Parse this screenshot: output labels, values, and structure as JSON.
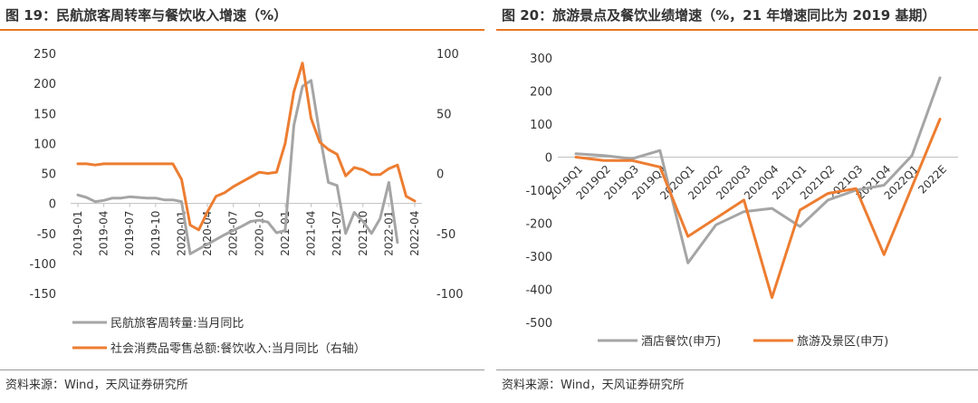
{
  "chart_data": [
    {
      "type": "line",
      "title": "图 19：民航旅客周转率与餐饮收入增速（%）",
      "source": "资料来源：Wind，天风证券研究所",
      "x": [
        "2019-01",
        "2019-02",
        "2019-03",
        "2019-04",
        "2019-05",
        "2019-06",
        "2019-07",
        "2019-08",
        "2019-09",
        "2019-10",
        "2019-11",
        "2019-12",
        "2020-01",
        "2020-02",
        "2020-03",
        "2020-04",
        "2020-05",
        "2020-06",
        "2020-07",
        "2020-08",
        "2020-09",
        "2020-10",
        "2020-11",
        "2020-12",
        "2021-01",
        "2021-02",
        "2021-03",
        "2021-04",
        "2021-05",
        "2021-06",
        "2021-07",
        "2021-08",
        "2021-09",
        "2021-10",
        "2021-11",
        "2021-12",
        "2022-01",
        "2022-02",
        "2022-03",
        "2022-04"
      ],
      "tick_labels": [
        "2019-01",
        "2019-04",
        "2019-07",
        "2019-10",
        "2020-01",
        "2020-04",
        "2020-07",
        "2020-10",
        "2021-01",
        "2021-04",
        "2021-07",
        "2021-10",
        "2022-01",
        "2022-04"
      ],
      "y_left": {
        "min": -150,
        "max": 250,
        "ticks": [
          -150,
          -100,
          -50,
          0,
          50,
          100,
          150,
          200,
          250
        ]
      },
      "y_right": {
        "min": -100,
        "max": 100,
        "ticks": [
          -100,
          -50,
          0,
          50,
          100
        ]
      },
      "grid": false,
      "legend_position": "bottom",
      "series": [
        {
          "name": "民航旅客周转量:当月同比",
          "color": "#a5a5a5",
          "axis": "left",
          "values": [
            14,
            10,
            3,
            5,
            9,
            9,
            11,
            10,
            9,
            9,
            6,
            6,
            3,
            -84,
            -76,
            -68,
            -60,
            -52,
            -45,
            -38,
            -30,
            -28,
            -31,
            -49,
            -45,
            130,
            195,
            205,
            115,
            35,
            30,
            -50,
            -15,
            -30,
            -50,
            -25,
            35,
            -65,
            null,
            null
          ]
        },
        {
          "name": "社会消费品零售总额:餐饮收入:当月同比（右轴）",
          "color": "#ed7d31",
          "axis": "right",
          "values": [
            8,
            8,
            7,
            8,
            8,
            8,
            8,
            8,
            8,
            8,
            8,
            8,
            -5,
            -43,
            -47,
            -32,
            -19,
            -16,
            -11,
            -7,
            -3,
            1,
            0,
            1,
            25,
            68,
            92,
            46,
            26,
            20,
            16,
            -2,
            5,
            3,
            -1,
            -1,
            4,
            7,
            -19,
            -23
          ]
        }
      ]
    },
    {
      "type": "line",
      "title": "图 20：旅游景点及餐饮业绩增速（%，21 年增速同比为 2019 基期）",
      "source": "资料来源：Wind，天风证券研究所",
      "x": [
        "2019Q1",
        "2019Q2",
        "2019Q3",
        "2019Q4",
        "2020Q1",
        "2020Q2",
        "2020Q3",
        "2020Q4",
        "2021Q1",
        "2021Q2",
        "2021Q3",
        "2021Q4",
        "2022Q1",
        "2022E"
      ],
      "y": {
        "min": -500,
        "max": 300,
        "ticks": [
          -500,
          -400,
          -300,
          -200,
          -100,
          0,
          100,
          200,
          300
        ]
      },
      "grid": false,
      "legend_position": "bottom",
      "series": [
        {
          "name": "酒店餐饮(申万)",
          "color": "#a5a5a5",
          "values": [
            10,
            5,
            -5,
            20,
            -320,
            -205,
            -165,
            -155,
            -210,
            -130,
            -100,
            -85,
            5,
            240
          ]
        },
        {
          "name": "旅游及景区(申万)",
          "color": "#ed7d31",
          "values": [
            0,
            -10,
            -10,
            -30,
            -240,
            -185,
            -130,
            -425,
            -160,
            -110,
            -95,
            -295,
            -90,
            115
          ]
        }
      ]
    }
  ]
}
